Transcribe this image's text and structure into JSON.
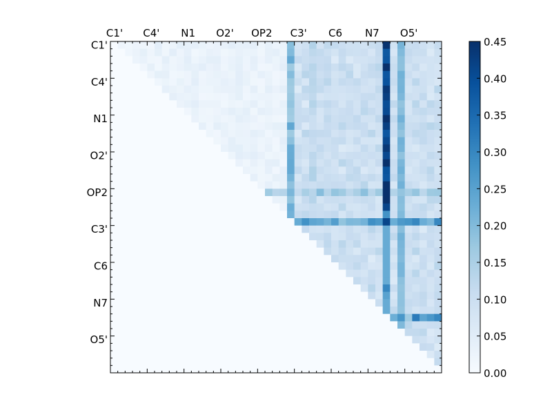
{
  "chart_data": {
    "type": "heatmap",
    "n": 45,
    "x_tick_labels": [
      "C1'",
      "C4'",
      "N1",
      "O2'",
      "OP2",
      "C3'",
      "C6",
      "N7",
      "O5'"
    ],
    "y_tick_labels": [
      "C1'",
      "C4'",
      "N1",
      "O2'",
      "OP2",
      "C3'",
      "C6",
      "N7",
      "O5'"
    ],
    "tick_indices": [
      0,
      5,
      10,
      15,
      20,
      25,
      30,
      35,
      40
    ],
    "value_range": [
      0.0,
      0.45
    ],
    "colormap": "Blues",
    "colorbar_ticks": [
      "0.00",
      "0.05",
      "0.10",
      "0.15",
      "0.20",
      "0.25",
      "0.30",
      "0.35",
      "0.40",
      "0.45"
    ],
    "colorbar_values": [
      0.0,
      0.05,
      0.1,
      0.15,
      0.2,
      0.25,
      0.3,
      0.35,
      0.4,
      0.45
    ],
    "matrix_shape": "upper-triangular",
    "default_cell_value": 0.0,
    "strong_columns": [
      {
        "col": 37,
        "value": 0.42
      },
      {
        "col": 39,
        "value": 0.2
      }
    ],
    "medium_columns": [
      {
        "col": 24,
        "value": 0.2
      },
      {
        "col": 27,
        "value": 0.12
      },
      {
        "col": 29,
        "value": 0.1
      }
    ],
    "strong_rows": [
      {
        "row": 20,
        "value": 0.18
      },
      {
        "row": 24,
        "value": 0.27
      },
      {
        "row": 37,
        "value": 0.27
      }
    ],
    "highlight_cells": [
      {
        "row": 24,
        "col": 44,
        "value": 0.3
      },
      {
        "row": 24,
        "col": 41,
        "value": 0.3
      },
      {
        "row": 37,
        "col": 41,
        "value": 0.32
      },
      {
        "row": 37,
        "col": 44,
        "value": 0.3
      },
      {
        "row": 23,
        "col": 37,
        "value": 0.28
      },
      {
        "row": 33,
        "col": 37,
        "value": 0.3
      },
      {
        "row": 34,
        "col": 37,
        "value": 0.25
      }
    ]
  }
}
